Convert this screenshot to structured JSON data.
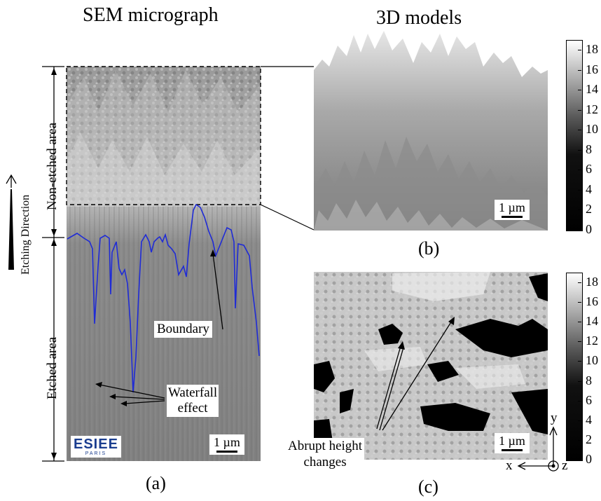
{
  "titles": {
    "left": "SEM micrograph",
    "right": "3D models"
  },
  "panel_labels": {
    "a": "(a)",
    "b": "(b)",
    "c": "(c)"
  },
  "side_labels": {
    "etching_direction": "Etching Direction",
    "non_etched_area": "Non-etched area",
    "etched_area": "Etched area"
  },
  "annotations": {
    "boundary": "Boundary",
    "waterfall_line1": "Waterfall",
    "waterfall_line2": "effect",
    "abrupt_line1": "Abrupt height",
    "abrupt_line2": "changes"
  },
  "scale_bars": {
    "a": "1 µm",
    "b": "1 µm",
    "c": "1 µm"
  },
  "logo": {
    "name": "ESIEE",
    "city": "PARIS"
  },
  "colorbar_b": {
    "ticks": [
      "0",
      "2",
      "4",
      "6",
      "8",
      "10",
      "12",
      "14",
      "16",
      "18"
    ]
  },
  "colorbar_c": {
    "ticks": [
      "0",
      "2",
      "4",
      "6",
      "8",
      "10",
      "12",
      "14",
      "16",
      "18"
    ]
  },
  "axes": {
    "x": "x",
    "y": "y",
    "z": "z"
  },
  "colors": {
    "boundary_line": "#1f2bd6"
  }
}
